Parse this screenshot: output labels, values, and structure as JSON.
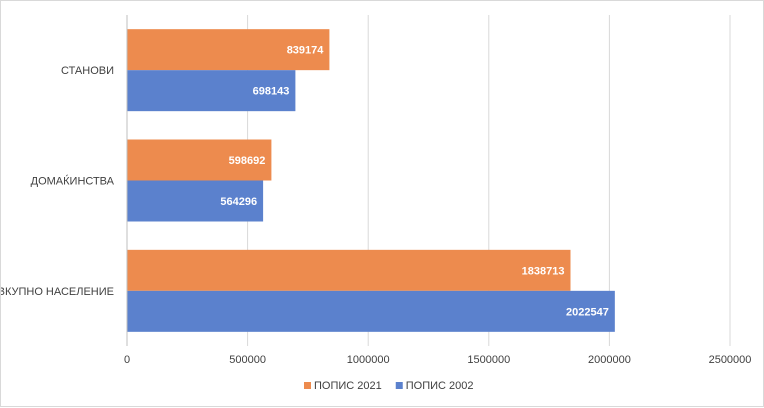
{
  "chart_data": {
    "type": "bar",
    "orientation": "horizontal",
    "categories": [
      "СТАНОВИ",
      "ДОМАЌИНСТВА",
      "ВКУПНО НАСЕЛЕНИЕ"
    ],
    "series": [
      {
        "name": "ПОПИС 2021",
        "color": "#ED8B4E",
        "values": [
          839174,
          598692,
          1838713
        ]
      },
      {
        "name": "ПОПИС 2002",
        "color": "#5B81CD",
        "values": [
          698143,
          564296,
          2022547
        ]
      }
    ],
    "xticks": [
      "0",
      "500000",
      "1000000",
      "1500000",
      "2000000",
      "2500000"
    ],
    "xlim": [
      0,
      2500000
    ],
    "grid": true,
    "legend_position": "bottom",
    "title": "",
    "xlabel": "",
    "ylabel": ""
  }
}
